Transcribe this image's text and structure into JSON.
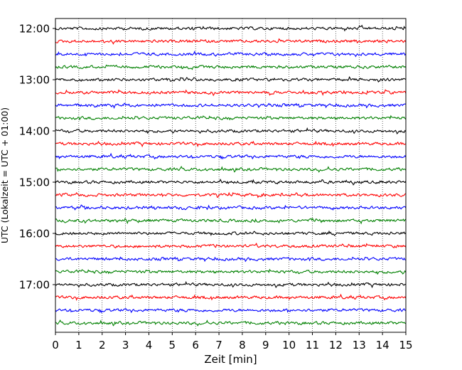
{
  "chart_data": {
    "type": "line",
    "title": "",
    "xlabel": "Zeit  [min]",
    "ylabel": "UTC (Lokalzeit = UTC + 01:00)",
    "xlim": [
      0,
      15
    ],
    "x_ticks": [
      "0",
      "1",
      "2",
      "3",
      "4",
      "5",
      "6",
      "7",
      "8",
      "9",
      "10",
      "11",
      "12",
      "13",
      "14",
      "15"
    ],
    "y_ticks": [
      "12:00",
      "13:00",
      "14:00",
      "15:00",
      "16:00",
      "17:00"
    ],
    "grid": "vertical dotted lines at each minute",
    "trace_colors": [
      "#000000",
      "#ff0000",
      "#0000ff",
      "#008000"
    ],
    "series": [
      {
        "start": "12:00",
        "color": "#000000"
      },
      {
        "start": "12:15",
        "color": "#ff0000"
      },
      {
        "start": "12:30",
        "color": "#0000ff"
      },
      {
        "start": "12:45",
        "color": "#008000"
      },
      {
        "start": "13:00",
        "color": "#000000"
      },
      {
        "start": "13:15",
        "color": "#ff0000"
      },
      {
        "start": "13:30",
        "color": "#0000ff"
      },
      {
        "start": "13:45",
        "color": "#008000"
      },
      {
        "start": "14:00",
        "color": "#000000"
      },
      {
        "start": "14:15",
        "color": "#ff0000"
      },
      {
        "start": "14:30",
        "color": "#0000ff"
      },
      {
        "start": "14:45",
        "color": "#008000"
      },
      {
        "start": "15:00",
        "color": "#000000"
      },
      {
        "start": "15:15",
        "color": "#ff0000"
      },
      {
        "start": "15:30",
        "color": "#0000ff"
      },
      {
        "start": "15:45",
        "color": "#008000"
      },
      {
        "start": "16:00",
        "color": "#000000"
      },
      {
        "start": "16:15",
        "color": "#ff0000"
      },
      {
        "start": "16:30",
        "color": "#0000ff"
      },
      {
        "start": "16:45",
        "color": "#008000"
      },
      {
        "start": "17:00",
        "color": "#000000"
      },
      {
        "start": "17:15",
        "color": "#ff0000"
      },
      {
        "start": "17:30",
        "color": "#0000ff"
      },
      {
        "start": "17:45",
        "color": "#008000"
      }
    ]
  }
}
